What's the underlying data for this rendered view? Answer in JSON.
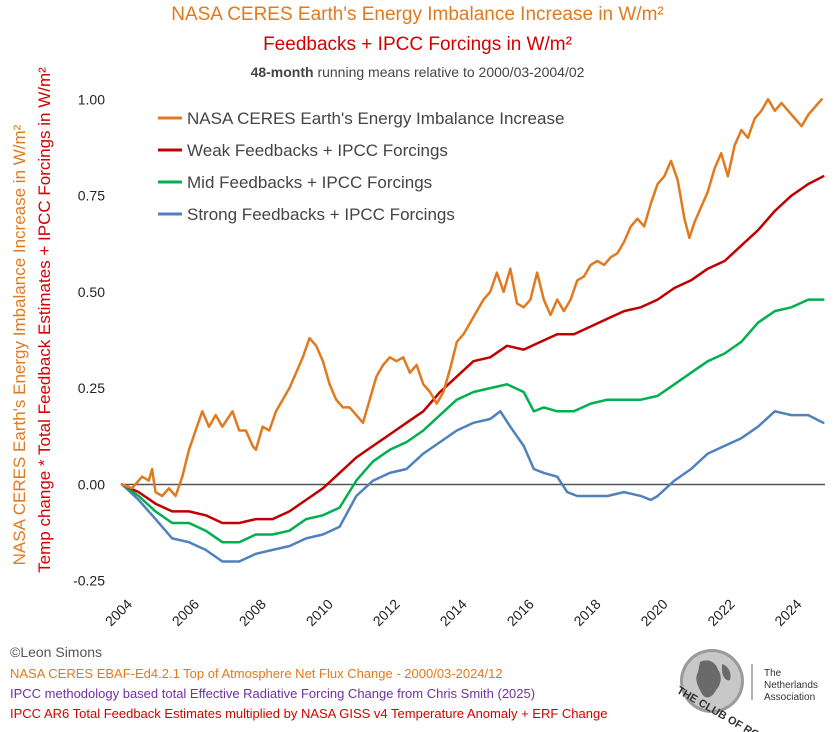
{
  "titles": {
    "line1": "NASA CERES Earth's Energy Imbalance Increase in W/m²",
    "line2": "Feedbacks + IPCC Forcings in W/m²",
    "line3_bold": "48-month",
    "line3_rest": " running means relative to 2000/03-2004/02"
  },
  "footer": {
    "credit": "©Leon Simons",
    "src1": "NASA CERES EBAF-Ed4.2.1 Top of Atmosphere Net Flux Change - 2000/03-2024/12",
    "src2": "IPCC methodology based total Effective Radiative Forcing Change from Chris Smith (2025)",
    "src3": "IPCC AR6 Total Feedback Estimates multiplied by NASA GISS v4 Temperature Anomaly + ERF Change"
  },
  "logo": {
    "arc_text": "THE CLUB OF ROME",
    "line1": "The Netherlands",
    "line2": "Association"
  },
  "chart_data": {
    "type": "line",
    "title": "NASA CERES Earth's Energy Imbalance Increase in W/m²",
    "ylabel_1": "NASA CERES Earth's Energy Imbalance Increase in W/m²",
    "ylabel_2": "Temp change * Total Feedback Estimates + IPCC Forcings in W/m²",
    "xlim": [
      2004,
      2025
    ],
    "ylim": [
      -0.3,
      1.05
    ],
    "x_ticks": [
      2004,
      2006,
      2008,
      2010,
      2012,
      2014,
      2016,
      2018,
      2020,
      2022,
      2024
    ],
    "x_tick_labels": [
      "2004",
      "2006",
      "2008",
      "2010",
      "2012",
      "2014",
      "2016",
      "2018",
      "2020",
      "2022",
      "2024"
    ],
    "y_ticks": [
      -0.25,
      0,
      0.25,
      0.5,
      0.75,
      1.0
    ],
    "y_tick_labels": [
      "-0.25",
      "0.00",
      "0.25",
      "0.50",
      "0.75",
      "1.00"
    ],
    "legend_position": "top-left",
    "series": [
      {
        "name": "NASA CERES Earth's Energy Imbalance Increase",
        "color": "#e07a1f",
        "points": [
          [
            2004.0,
            0.0
          ],
          [
            2004.3,
            -0.01
          ],
          [
            2004.6,
            0.02
          ],
          [
            2004.8,
            0.01
          ],
          [
            2004.9,
            0.04
          ],
          [
            2005.0,
            -0.02
          ],
          [
            2005.2,
            -0.03
          ],
          [
            2005.4,
            -0.01
          ],
          [
            2005.6,
            -0.03
          ],
          [
            2005.8,
            0.02
          ],
          [
            2006.0,
            0.09
          ],
          [
            2006.2,
            0.14
          ],
          [
            2006.4,
            0.19
          ],
          [
            2006.6,
            0.15
          ],
          [
            2006.8,
            0.18
          ],
          [
            2007.0,
            0.15
          ],
          [
            2007.3,
            0.19
          ],
          [
            2007.5,
            0.14
          ],
          [
            2007.7,
            0.14
          ],
          [
            2007.9,
            0.1
          ],
          [
            2008.0,
            0.09
          ],
          [
            2008.2,
            0.15
          ],
          [
            2008.4,
            0.14
          ],
          [
            2008.6,
            0.19
          ],
          [
            2008.8,
            0.22
          ],
          [
            2009.0,
            0.25
          ],
          [
            2009.2,
            0.29
          ],
          [
            2009.4,
            0.33
          ],
          [
            2009.6,
            0.38
          ],
          [
            2009.8,
            0.36
          ],
          [
            2010.0,
            0.32
          ],
          [
            2010.2,
            0.26
          ],
          [
            2010.4,
            0.22
          ],
          [
            2010.6,
            0.2
          ],
          [
            2010.8,
            0.2
          ],
          [
            2011.0,
            0.18
          ],
          [
            2011.2,
            0.16
          ],
          [
            2011.4,
            0.22
          ],
          [
            2011.6,
            0.28
          ],
          [
            2011.8,
            0.31
          ],
          [
            2012.0,
            0.33
          ],
          [
            2012.2,
            0.32
          ],
          [
            2012.4,
            0.33
          ],
          [
            2012.6,
            0.29
          ],
          [
            2012.8,
            0.31
          ],
          [
            2013.0,
            0.26
          ],
          [
            2013.2,
            0.24
          ],
          [
            2013.4,
            0.21
          ],
          [
            2013.6,
            0.24
          ],
          [
            2013.8,
            0.3
          ],
          [
            2014.0,
            0.37
          ],
          [
            2014.2,
            0.39
          ],
          [
            2014.4,
            0.42
          ],
          [
            2014.6,
            0.45
          ],
          [
            2014.8,
            0.48
          ],
          [
            2015.0,
            0.5
          ],
          [
            2015.2,
            0.55
          ],
          [
            2015.4,
            0.5
          ],
          [
            2015.6,
            0.56
          ],
          [
            2015.8,
            0.47
          ],
          [
            2016.0,
            0.46
          ],
          [
            2016.2,
            0.48
          ],
          [
            2016.4,
            0.55
          ],
          [
            2016.6,
            0.48
          ],
          [
            2016.8,
            0.44
          ],
          [
            2017.0,
            0.48
          ],
          [
            2017.2,
            0.45
          ],
          [
            2017.4,
            0.48
          ],
          [
            2017.6,
            0.53
          ],
          [
            2017.8,
            0.54
          ],
          [
            2018.0,
            0.57
          ],
          [
            2018.2,
            0.58
          ],
          [
            2018.4,
            0.57
          ],
          [
            2018.6,
            0.59
          ],
          [
            2018.8,
            0.6
          ],
          [
            2019.0,
            0.63
          ],
          [
            2019.2,
            0.67
          ],
          [
            2019.4,
            0.69
          ],
          [
            2019.6,
            0.67
          ],
          [
            2019.8,
            0.73
          ],
          [
            2020.0,
            0.78
          ],
          [
            2020.2,
            0.8
          ],
          [
            2020.4,
            0.84
          ],
          [
            2020.6,
            0.79
          ],
          [
            2020.8,
            0.69
          ],
          [
            2020.95,
            0.64
          ],
          [
            2021.1,
            0.68
          ],
          [
            2021.3,
            0.72
          ],
          [
            2021.5,
            0.76
          ],
          [
            2021.7,
            0.82
          ],
          [
            2021.9,
            0.86
          ],
          [
            2022.1,
            0.8
          ],
          [
            2022.3,
            0.88
          ],
          [
            2022.5,
            0.92
          ],
          [
            2022.7,
            0.9
          ],
          [
            2022.9,
            0.95
          ],
          [
            2023.1,
            0.97
          ],
          [
            2023.3,
            1.0
          ],
          [
            2023.5,
            0.97
          ],
          [
            2023.7,
            0.99
          ],
          [
            2023.9,
            0.97
          ],
          [
            2024.1,
            0.95
          ],
          [
            2024.3,
            0.93
          ],
          [
            2024.5,
            0.96
          ],
          [
            2024.7,
            0.98
          ],
          [
            2024.9,
            1.0
          ]
        ]
      },
      {
        "name": "Weak Feedbacks + IPCC Forcings",
        "color": "#c00000",
        "points": [
          [
            2004.0,
            0.0
          ],
          [
            2004.5,
            -0.02
          ],
          [
            2005.0,
            -0.05
          ],
          [
            2005.5,
            -0.07
          ],
          [
            2006.0,
            -0.07
          ],
          [
            2006.5,
            -0.08
          ],
          [
            2007.0,
            -0.1
          ],
          [
            2007.5,
            -0.1
          ],
          [
            2008.0,
            -0.09
          ],
          [
            2008.5,
            -0.09
          ],
          [
            2009.0,
            -0.07
          ],
          [
            2009.5,
            -0.04
          ],
          [
            2010.0,
            -0.01
          ],
          [
            2010.5,
            0.03
          ],
          [
            2011.0,
            0.07
          ],
          [
            2011.5,
            0.1
          ],
          [
            2012.0,
            0.13
          ],
          [
            2012.5,
            0.16
          ],
          [
            2013.0,
            0.19
          ],
          [
            2013.5,
            0.24
          ],
          [
            2014.0,
            0.28
          ],
          [
            2014.5,
            0.32
          ],
          [
            2015.0,
            0.33
          ],
          [
            2015.5,
            0.36
          ],
          [
            2016.0,
            0.35
          ],
          [
            2016.5,
            0.37
          ],
          [
            2017.0,
            0.39
          ],
          [
            2017.5,
            0.39
          ],
          [
            2018.0,
            0.41
          ],
          [
            2018.5,
            0.43
          ],
          [
            2019.0,
            0.45
          ],
          [
            2019.5,
            0.46
          ],
          [
            2020.0,
            0.48
          ],
          [
            2020.5,
            0.51
          ],
          [
            2021.0,
            0.53
          ],
          [
            2021.5,
            0.56
          ],
          [
            2022.0,
            0.58
          ],
          [
            2022.5,
            0.62
          ],
          [
            2023.0,
            0.66
          ],
          [
            2023.5,
            0.71
          ],
          [
            2024.0,
            0.75
          ],
          [
            2024.5,
            0.78
          ],
          [
            2024.95,
            0.8
          ]
        ]
      },
      {
        "name": "Mid Feedbacks + IPCC Forcings",
        "color": "#00b050",
        "points": [
          [
            2004.0,
            0.0
          ],
          [
            2004.5,
            -0.03
          ],
          [
            2005.0,
            -0.07
          ],
          [
            2005.5,
            -0.1
          ],
          [
            2006.0,
            -0.1
          ],
          [
            2006.5,
            -0.12
          ],
          [
            2007.0,
            -0.15
          ],
          [
            2007.5,
            -0.15
          ],
          [
            2008.0,
            -0.13
          ],
          [
            2008.5,
            -0.13
          ],
          [
            2009.0,
            -0.12
          ],
          [
            2009.5,
            -0.09
          ],
          [
            2010.0,
            -0.08
          ],
          [
            2010.5,
            -0.06
          ],
          [
            2011.0,
            0.01
          ],
          [
            2011.5,
            0.06
          ],
          [
            2012.0,
            0.09
          ],
          [
            2012.5,
            0.11
          ],
          [
            2013.0,
            0.14
          ],
          [
            2013.5,
            0.18
          ],
          [
            2014.0,
            0.22
          ],
          [
            2014.5,
            0.24
          ],
          [
            2015.0,
            0.25
          ],
          [
            2015.5,
            0.26
          ],
          [
            2016.0,
            0.24
          ],
          [
            2016.3,
            0.19
          ],
          [
            2016.6,
            0.2
          ],
          [
            2017.0,
            0.19
          ],
          [
            2017.5,
            0.19
          ],
          [
            2018.0,
            0.21
          ],
          [
            2018.5,
            0.22
          ],
          [
            2019.0,
            0.22
          ],
          [
            2019.5,
            0.22
          ],
          [
            2020.0,
            0.23
          ],
          [
            2020.5,
            0.26
          ],
          [
            2021.0,
            0.29
          ],
          [
            2021.5,
            0.32
          ],
          [
            2022.0,
            0.34
          ],
          [
            2022.5,
            0.37
          ],
          [
            2023.0,
            0.42
          ],
          [
            2023.5,
            0.45
          ],
          [
            2024.0,
            0.46
          ],
          [
            2024.5,
            0.48
          ],
          [
            2024.95,
            0.48
          ]
        ]
      },
      {
        "name": "Strong Feedbacks + IPCC Forcings",
        "color": "#4e81bd",
        "points": [
          [
            2004.0,
            0.0
          ],
          [
            2004.5,
            -0.04
          ],
          [
            2005.0,
            -0.09
          ],
          [
            2005.5,
            -0.14
          ],
          [
            2006.0,
            -0.15
          ],
          [
            2006.5,
            -0.17
          ],
          [
            2007.0,
            -0.2
          ],
          [
            2007.5,
            -0.2
          ],
          [
            2008.0,
            -0.18
          ],
          [
            2008.5,
            -0.17
          ],
          [
            2009.0,
            -0.16
          ],
          [
            2009.5,
            -0.14
          ],
          [
            2010.0,
            -0.13
          ],
          [
            2010.5,
            -0.11
          ],
          [
            2011.0,
            -0.03
          ],
          [
            2011.5,
            0.01
          ],
          [
            2012.0,
            0.03
          ],
          [
            2012.5,
            0.04
          ],
          [
            2013.0,
            0.08
          ],
          [
            2013.5,
            0.11
          ],
          [
            2014.0,
            0.14
          ],
          [
            2014.5,
            0.16
          ],
          [
            2015.0,
            0.17
          ],
          [
            2015.3,
            0.19
          ],
          [
            2015.6,
            0.15
          ],
          [
            2016.0,
            0.1
          ],
          [
            2016.3,
            0.04
          ],
          [
            2016.6,
            0.03
          ],
          [
            2017.0,
            0.02
          ],
          [
            2017.3,
            -0.02
          ],
          [
            2017.6,
            -0.03
          ],
          [
            2018.0,
            -0.03
          ],
          [
            2018.5,
            -0.03
          ],
          [
            2019.0,
            -0.02
          ],
          [
            2019.5,
            -0.03
          ],
          [
            2019.8,
            -0.04
          ],
          [
            2020.0,
            -0.03
          ],
          [
            2020.5,
            0.01
          ],
          [
            2021.0,
            0.04
          ],
          [
            2021.5,
            0.08
          ],
          [
            2022.0,
            0.1
          ],
          [
            2022.5,
            0.12
          ],
          [
            2023.0,
            0.15
          ],
          [
            2023.5,
            0.19
          ],
          [
            2024.0,
            0.18
          ],
          [
            2024.5,
            0.18
          ],
          [
            2024.95,
            0.16
          ]
        ]
      }
    ]
  }
}
